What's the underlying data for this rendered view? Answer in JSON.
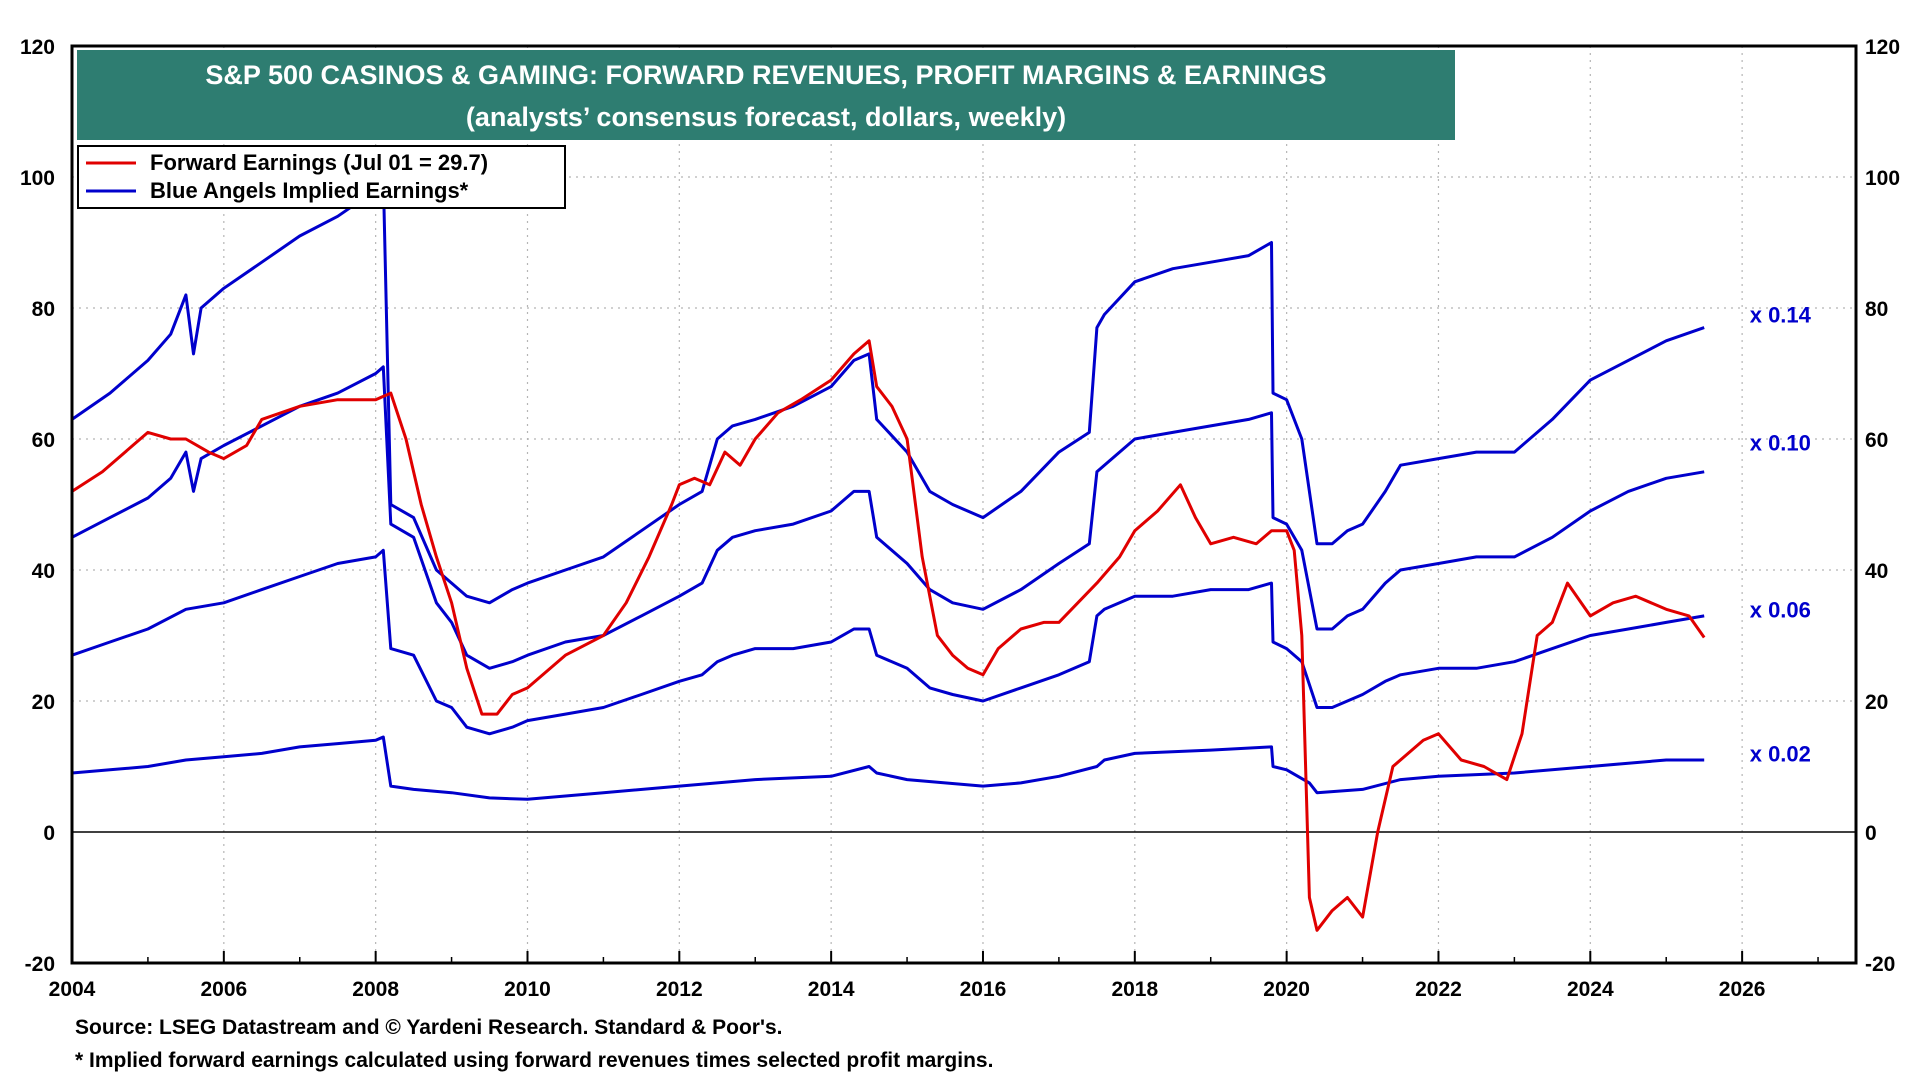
{
  "chart_data": {
    "type": "line",
    "title": "S&P 500 CASINOS & GAMING: FORWARD REVENUES, PROFIT MARGINS & EARNINGS",
    "subtitle": "(analysts’ consensus forecast, dollars, weekly)",
    "xlabel": "",
    "ylabel": "",
    "xlim": [
      2004,
      2027.5
    ],
    "ylim": [
      -20,
      120
    ],
    "x_ticks": [
      "2004",
      "2006",
      "2008",
      "2010",
      "2012",
      "2014",
      "2016",
      "2018",
      "2020",
      "2022",
      "2024",
      "2026"
    ],
    "y_ticks": [
      "120",
      "100",
      "80",
      "60",
      "40",
      "20",
      "0",
      "-20"
    ],
    "grid": true,
    "legend_position": "top-left",
    "legend": [
      {
        "label": "Forward Earnings (Jul 01 = 29.7)",
        "color": "#E00000"
      },
      {
        "label": "Blue Angels Implied Earnings*",
        "color": "#0000CC"
      }
    ],
    "series": [
      {
        "name": "Forward Earnings (Jul 01 = 29.7)",
        "color": "#E00000",
        "x": [
          2004.0,
          2004.4,
          2004.8,
          2005.0,
          2005.3,
          2005.5,
          2005.8,
          2006.0,
          2006.3,
          2006.5,
          2007.0,
          2007.5,
          2008.0,
          2008.2,
          2008.4,
          2008.6,
          2008.8,
          2009.0,
          2009.2,
          2009.4,
          2009.6,
          2009.8,
          2010.0,
          2010.5,
          2011.0,
          2011.3,
          2011.6,
          2011.9,
          2012.0,
          2012.2,
          2012.4,
          2012.6,
          2012.8,
          2013.0,
          2013.3,
          2013.6,
          2014.0,
          2014.3,
          2014.5,
          2014.6,
          2014.8,
          2015.0,
          2015.2,
          2015.4,
          2015.6,
          2015.8,
          2016.0,
          2016.2,
          2016.5,
          2016.8,
          2017.0,
          2017.5,
          2017.8,
          2018.0,
          2018.3,
          2018.6,
          2018.8,
          2019.0,
          2019.3,
          2019.6,
          2019.8,
          2020.0,
          2020.1,
          2020.2,
          2020.3,
          2020.4,
          2020.6,
          2020.8,
          2021.0,
          2021.2,
          2021.4,
          2021.6,
          2021.8,
          2022.0,
          2022.3,
          2022.6,
          2022.9,
          2023.1,
          2023.3,
          2023.5,
          2023.7,
          2024.0,
          2024.3,
          2024.6,
          2025.0,
          2025.3,
          2025.5
        ],
        "values": [
          52,
          55,
          59,
          61,
          60,
          60,
          58,
          57,
          59,
          63,
          65,
          66,
          66,
          67,
          60,
          50,
          42,
          35,
          25,
          18,
          18,
          21,
          22,
          27,
          30,
          35,
          42,
          50,
          53,
          54,
          53,
          58,
          56,
          60,
          64,
          66,
          69,
          73,
          75,
          68,
          65,
          60,
          42,
          30,
          27,
          25,
          24,
          28,
          31,
          32,
          32,
          38,
          42,
          46,
          49,
          53,
          48,
          44,
          45,
          44,
          46,
          46,
          43,
          30,
          -10,
          -15,
          -12,
          -10,
          -13,
          0,
          10,
          12,
          14,
          15,
          11,
          10,
          8,
          15,
          30,
          32,
          38,
          33,
          35,
          36,
          34,
          33,
          29.7
        ]
      },
      {
        "name": "x 0.14",
        "color": "#0000CC",
        "x": [
          2004.0,
          2004.5,
          2005.0,
          2005.3,
          2005.5,
          2005.6,
          2005.7,
          2006.0,
          2006.5,
          2007.0,
          2007.5,
          2008.0,
          2008.1,
          2008.2,
          2008.5,
          2008.8,
          2009.0,
          2009.2,
          2009.5,
          2009.8,
          2010.0,
          2010.5,
          2011.0,
          2011.5,
          2012.0,
          2012.3,
          2012.5,
          2012.7,
          2013.0,
          2013.5,
          2014.0,
          2014.3,
          2014.5,
          2014.6,
          2015.0,
          2015.3,
          2015.6,
          2016.0,
          2016.5,
          2017.0,
          2017.4,
          2017.5,
          2017.6,
          2018.0,
          2018.5,
          2019.0,
          2019.5,
          2019.8,
          2019.82,
          2020.0,
          2020.2,
          2020.4,
          2020.6,
          2020.8,
          2021.0,
          2021.3,
          2021.5,
          2022.0,
          2022.5,
          2023.0,
          2023.5,
          2024.0,
          2024.5,
          2025.0,
          2025.5
        ],
        "values": [
          63,
          67,
          72,
          76,
          82,
          73,
          80,
          83,
          87,
          91,
          94,
          98,
          100,
          50,
          48,
          40,
          38,
          36,
          35,
          37,
          38,
          40,
          42,
          46,
          50,
          52,
          60,
          62,
          63,
          65,
          68,
          72,
          73,
          63,
          58,
          52,
          50,
          48,
          52,
          58,
          61,
          77,
          79,
          84,
          86,
          87,
          88,
          90,
          67,
          66,
          60,
          44,
          44,
          46,
          47,
          52,
          56,
          57,
          58,
          58,
          63,
          69,
          72,
          75,
          77
        ]
      },
      {
        "name": "x 0.10",
        "color": "#0000CC",
        "x": [
          2004.0,
          2004.5,
          2005.0,
          2005.3,
          2005.5,
          2005.6,
          2005.7,
          2006.0,
          2006.5,
          2007.0,
          2007.5,
          2008.0,
          2008.1,
          2008.2,
          2008.5,
          2008.8,
          2009.0,
          2009.2,
          2009.5,
          2009.8,
          2010.0,
          2010.5,
          2011.0,
          2011.5,
          2012.0,
          2012.3,
          2012.5,
          2012.7,
          2013.0,
          2013.5,
          2014.0,
          2014.3,
          2014.5,
          2014.6,
          2015.0,
          2015.3,
          2015.6,
          2016.0,
          2016.5,
          2017.0,
          2017.4,
          2017.5,
          2017.6,
          2018.0,
          2018.5,
          2019.0,
          2019.5,
          2019.8,
          2019.82,
          2020.0,
          2020.2,
          2020.4,
          2020.6,
          2020.8,
          2021.0,
          2021.3,
          2021.5,
          2022.0,
          2022.5,
          2023.0,
          2023.5,
          2024.0,
          2024.5,
          2025.0,
          2025.5
        ],
        "values": [
          45,
          48,
          51,
          54,
          58,
          52,
          57,
          59,
          62,
          65,
          67,
          70,
          71,
          47,
          45,
          35,
          32,
          27,
          25,
          26,
          27,
          29,
          30,
          33,
          36,
          38,
          43,
          45,
          46,
          47,
          49,
          52,
          52,
          45,
          41,
          37,
          35,
          34,
          37,
          41,
          44,
          55,
          56,
          60,
          61,
          62,
          63,
          64,
          48,
          47,
          43,
          31,
          31,
          33,
          34,
          38,
          40,
          41,
          42,
          42,
          45,
          49,
          52,
          54,
          55
        ]
      },
      {
        "name": "x 0.06",
        "color": "#0000CC",
        "x": [
          2004.0,
          2004.5,
          2005.0,
          2005.5,
          2006.0,
          2006.5,
          2007.0,
          2007.5,
          2008.0,
          2008.1,
          2008.2,
          2008.5,
          2008.8,
          2009.0,
          2009.2,
          2009.5,
          2009.8,
          2010.0,
          2010.5,
          2011.0,
          2011.5,
          2012.0,
          2012.3,
          2012.5,
          2012.7,
          2013.0,
          2013.5,
          2014.0,
          2014.3,
          2014.5,
          2014.6,
          2015.0,
          2015.3,
          2015.6,
          2016.0,
          2016.5,
          2017.0,
          2017.4,
          2017.5,
          2017.6,
          2018.0,
          2018.5,
          2019.0,
          2019.5,
          2019.8,
          2019.82,
          2020.0,
          2020.2,
          2020.4,
          2020.6,
          2020.8,
          2021.0,
          2021.3,
          2021.5,
          2022.0,
          2022.5,
          2023.0,
          2023.5,
          2024.0,
          2024.5,
          2025.0,
          2025.5
        ],
        "values": [
          27,
          29,
          31,
          34,
          35,
          37,
          39,
          41,
          42,
          43,
          28,
          27,
          20,
          19,
          16,
          15,
          16,
          17,
          18,
          19,
          21,
          23,
          24,
          26,
          27,
          28,
          28,
          29,
          31,
          31,
          27,
          25,
          22,
          21,
          20,
          22,
          24,
          26,
          33,
          34,
          36,
          36,
          37,
          37,
          38,
          29,
          28,
          26,
          19,
          19,
          20,
          21,
          23,
          24,
          25,
          25,
          26,
          28,
          30,
          31,
          32,
          33
        ]
      },
      {
        "name": "x 0.02",
        "color": "#0000CC",
        "x": [
          2004.0,
          2004.5,
          2005.0,
          2005.5,
          2006.0,
          2006.5,
          2007.0,
          2007.5,
          2008.0,
          2008.1,
          2008.2,
          2008.5,
          2009.0,
          2009.5,
          2010.0,
          2011.0,
          2012.0,
          2013.0,
          2014.0,
          2014.5,
          2014.6,
          2015.0,
          2015.5,
          2016.0,
          2016.5,
          2017.0,
          2017.5,
          2017.6,
          2018.0,
          2019.0,
          2019.8,
          2019.82,
          2020.0,
          2020.3,
          2020.4,
          2021.0,
          2021.5,
          2022.0,
          2023.0,
          2024.0,
          2024.5,
          2025.0,
          2025.5
        ],
        "values": [
          9,
          9.5,
          10,
          11,
          11.5,
          12,
          13,
          13.5,
          14,
          14.5,
          7,
          6.5,
          6,
          5.2,
          5,
          6,
          7,
          8,
          8.5,
          10,
          9,
          8,
          7.5,
          7,
          7.5,
          8.5,
          10,
          11,
          12,
          12.5,
          13,
          10,
          9.5,
          7.5,
          6,
          6.5,
          8,
          8.5,
          9,
          10,
          10.5,
          11,
          11
        ]
      }
    ],
    "multiplier_labels": [
      "x 0.14",
      "x 0.10",
      "x 0.06",
      "x 0.02"
    ],
    "multiplier_label_values": [
      79,
      59.5,
      34,
      12
    ]
  },
  "footnotes": {
    "source": "Source: LSEG Datastream and © Yardeni Research. Standard & Poor's.",
    "note": "* Implied forward earnings calculated using forward revenues times selected profit margins."
  }
}
